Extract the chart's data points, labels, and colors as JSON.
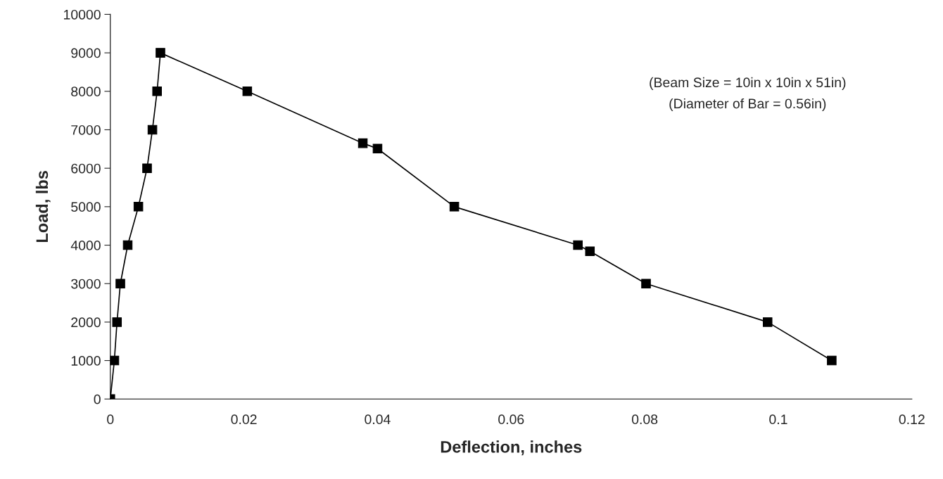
{
  "chart_data": {
    "type": "line",
    "xlabel": "Deflection, inches",
    "ylabel": "Load, lbs",
    "x": [
      0,
      0.0006,
      0.001,
      0.0015,
      0.0026,
      0.0042,
      0.0055,
      0.0063,
      0.007,
      0.0075,
      0.0205,
      0.0378,
      0.04,
      0.0515,
      0.07,
      0.0718,
      0.0802,
      0.0984,
      0.108
    ],
    "series": [
      {
        "color": "#000000",
        "values": [
          0,
          1000,
          2000,
          3000,
          4000,
          5000,
          6000,
          7000,
          8000,
          9000,
          8000,
          6650,
          6510,
          5000,
          4000,
          3840,
          3000,
          2000,
          1000
        ]
      }
    ],
    "marker": "square",
    "line_style": "solid",
    "grid": false,
    "legend": false,
    "xlim": [
      0,
      0.12
    ],
    "xticks": [
      0,
      0.02,
      0.04,
      0.06,
      0.08,
      0.1,
      0.12
    ],
    "ylim": [
      0,
      10000
    ],
    "yticks": [
      0,
      1000,
      2000,
      3000,
      4000,
      5000,
      6000,
      7000,
      8000,
      9000,
      10000
    ],
    "annotations": [
      "(Beam Size = 10in x 10in x 51in)",
      "(Diameter of Bar = 0.56in)"
    ]
  }
}
